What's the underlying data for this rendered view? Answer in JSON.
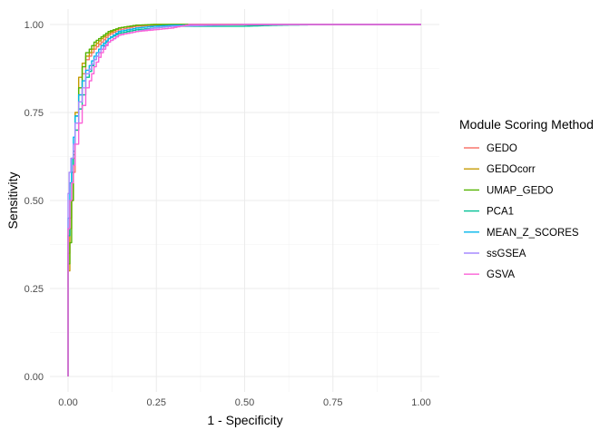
{
  "chart_data": {
    "type": "line",
    "xlabel": "1 - Specificity",
    "ylabel": "Sensitivity",
    "xlim": [
      0,
      1
    ],
    "ylim": [
      0,
      1
    ],
    "x_ticks": [
      "0.00",
      "0.25",
      "0.50",
      "0.75",
      "1.00"
    ],
    "y_ticks": [
      "0.00",
      "0.25",
      "0.50",
      "0.75",
      "1.00"
    ],
    "grid": true,
    "legend": {
      "title": "Module Scoring Method",
      "position": "right"
    },
    "series": [
      {
        "name": "GEDO",
        "color": "#F8766D",
        "x": [
          0,
          0.005,
          0.01,
          0.015,
          0.02,
          0.03,
          0.04,
          0.05,
          0.06,
          0.08,
          0.1,
          0.12,
          0.15,
          0.2,
          0.25,
          0.3,
          0.5,
          0.75,
          1
        ],
        "y": [
          0,
          0.35,
          0.45,
          0.5,
          0.58,
          0.7,
          0.8,
          0.86,
          0.9,
          0.93,
          0.95,
          0.97,
          0.985,
          0.995,
          0.998,
          1,
          1,
          1,
          1
        ]
      },
      {
        "name": "GEDOcorr",
        "color": "#C49A00",
        "x": [
          0,
          0.005,
          0.01,
          0.015,
          0.02,
          0.03,
          0.04,
          0.05,
          0.06,
          0.08,
          0.1,
          0.12,
          0.15,
          0.2,
          0.25,
          0.3,
          0.5,
          0.75,
          1
        ],
        "y": [
          0,
          0.3,
          0.42,
          0.5,
          0.62,
          0.75,
          0.85,
          0.89,
          0.91,
          0.94,
          0.96,
          0.975,
          0.99,
          0.998,
          1,
          1,
          1,
          1,
          1
        ]
      },
      {
        "name": "UMAP_GEDO",
        "color": "#53B400",
        "x": [
          0,
          0.005,
          0.01,
          0.015,
          0.02,
          0.03,
          0.04,
          0.05,
          0.06,
          0.08,
          0.1,
          0.12,
          0.15,
          0.2,
          0.25,
          0.3,
          0.5,
          0.75,
          1
        ],
        "y": [
          0,
          0.32,
          0.38,
          0.5,
          0.63,
          0.74,
          0.82,
          0.88,
          0.92,
          0.95,
          0.965,
          0.98,
          0.99,
          0.998,
          1,
          1,
          1,
          1,
          1
        ]
      },
      {
        "name": "PCA1",
        "color": "#00C094",
        "x": [
          0,
          0.005,
          0.01,
          0.015,
          0.02,
          0.03,
          0.04,
          0.05,
          0.06,
          0.08,
          0.1,
          0.12,
          0.15,
          0.2,
          0.25,
          0.3,
          0.5,
          0.6,
          0.75,
          1
        ],
        "y": [
          0,
          0.4,
          0.5,
          0.58,
          0.64,
          0.7,
          0.76,
          0.8,
          0.85,
          0.9,
          0.93,
          0.96,
          0.975,
          0.985,
          0.99,
          0.995,
          0.995,
          0.998,
          1,
          1
        ]
      },
      {
        "name": "MEAN_Z_SCORES",
        "color": "#00B6EB",
        "x": [
          0,
          0.005,
          0.01,
          0.015,
          0.02,
          0.03,
          0.04,
          0.05,
          0.06,
          0.08,
          0.1,
          0.12,
          0.15,
          0.2,
          0.25,
          0.3,
          0.5,
          0.75,
          1
        ],
        "y": [
          0,
          0.45,
          0.55,
          0.62,
          0.68,
          0.74,
          0.8,
          0.84,
          0.87,
          0.91,
          0.94,
          0.96,
          0.98,
          0.99,
          0.995,
          0.998,
          1,
          1,
          1
        ]
      },
      {
        "name": "ssGSEA",
        "color": "#A58AFF",
        "x": [
          0,
          0.003,
          0.008,
          0.015,
          0.02,
          0.03,
          0.04,
          0.05,
          0.06,
          0.08,
          0.1,
          0.12,
          0.15,
          0.2,
          0.25,
          0.3,
          0.5,
          0.75,
          1
        ],
        "y": [
          0,
          0.52,
          0.58,
          0.62,
          0.66,
          0.72,
          0.78,
          0.82,
          0.86,
          0.9,
          0.93,
          0.95,
          0.97,
          0.98,
          0.99,
          0.995,
          1,
          1,
          1
        ]
      },
      {
        "name": "GSVA",
        "color": "#FB61D7",
        "x": [
          0,
          0.005,
          0.01,
          0.015,
          0.02,
          0.03,
          0.04,
          0.05,
          0.06,
          0.08,
          0.1,
          0.12,
          0.15,
          0.2,
          0.25,
          0.3,
          0.35,
          0.5,
          0.75,
          1
        ],
        "y": [
          0,
          0.42,
          0.5,
          0.55,
          0.6,
          0.66,
          0.72,
          0.77,
          0.82,
          0.88,
          0.92,
          0.95,
          0.97,
          0.98,
          0.985,
          0.99,
          1,
          1,
          1,
          1
        ]
      }
    ]
  }
}
